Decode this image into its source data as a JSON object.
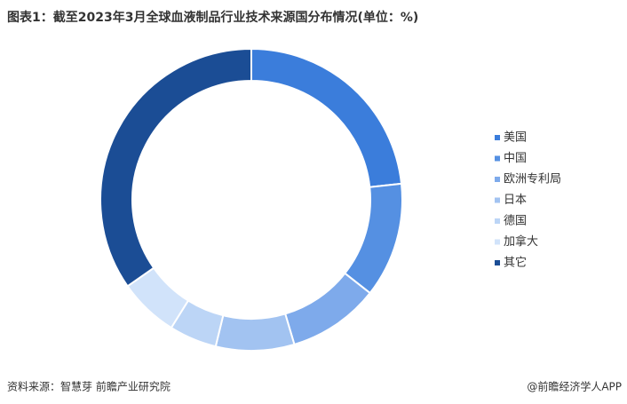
{
  "chart_data": {
    "type": "donut",
    "title": "图表1：截至2023年3月全球血液制品行业技术来源国分布情况(单位：%)",
    "categories": [
      "美国",
      "中国",
      "欧洲专利局",
      "日本",
      "德国",
      "加拿大",
      "其它"
    ],
    "values": [
      23.3,
      12.3,
      9.8,
      8.4,
      5.1,
      6.4,
      34.7
    ],
    "colors": [
      "#3b7ddb",
      "#5590e2",
      "#7eaaeb",
      "#a2c3f1",
      "#bcd5f6",
      "#d1e3fa",
      "#1b4d95"
    ],
    "legend": "right",
    "source": "资料来源：智慧芽 前瞻产业研究院",
    "credit": "@前瞻经济学人APP"
  }
}
